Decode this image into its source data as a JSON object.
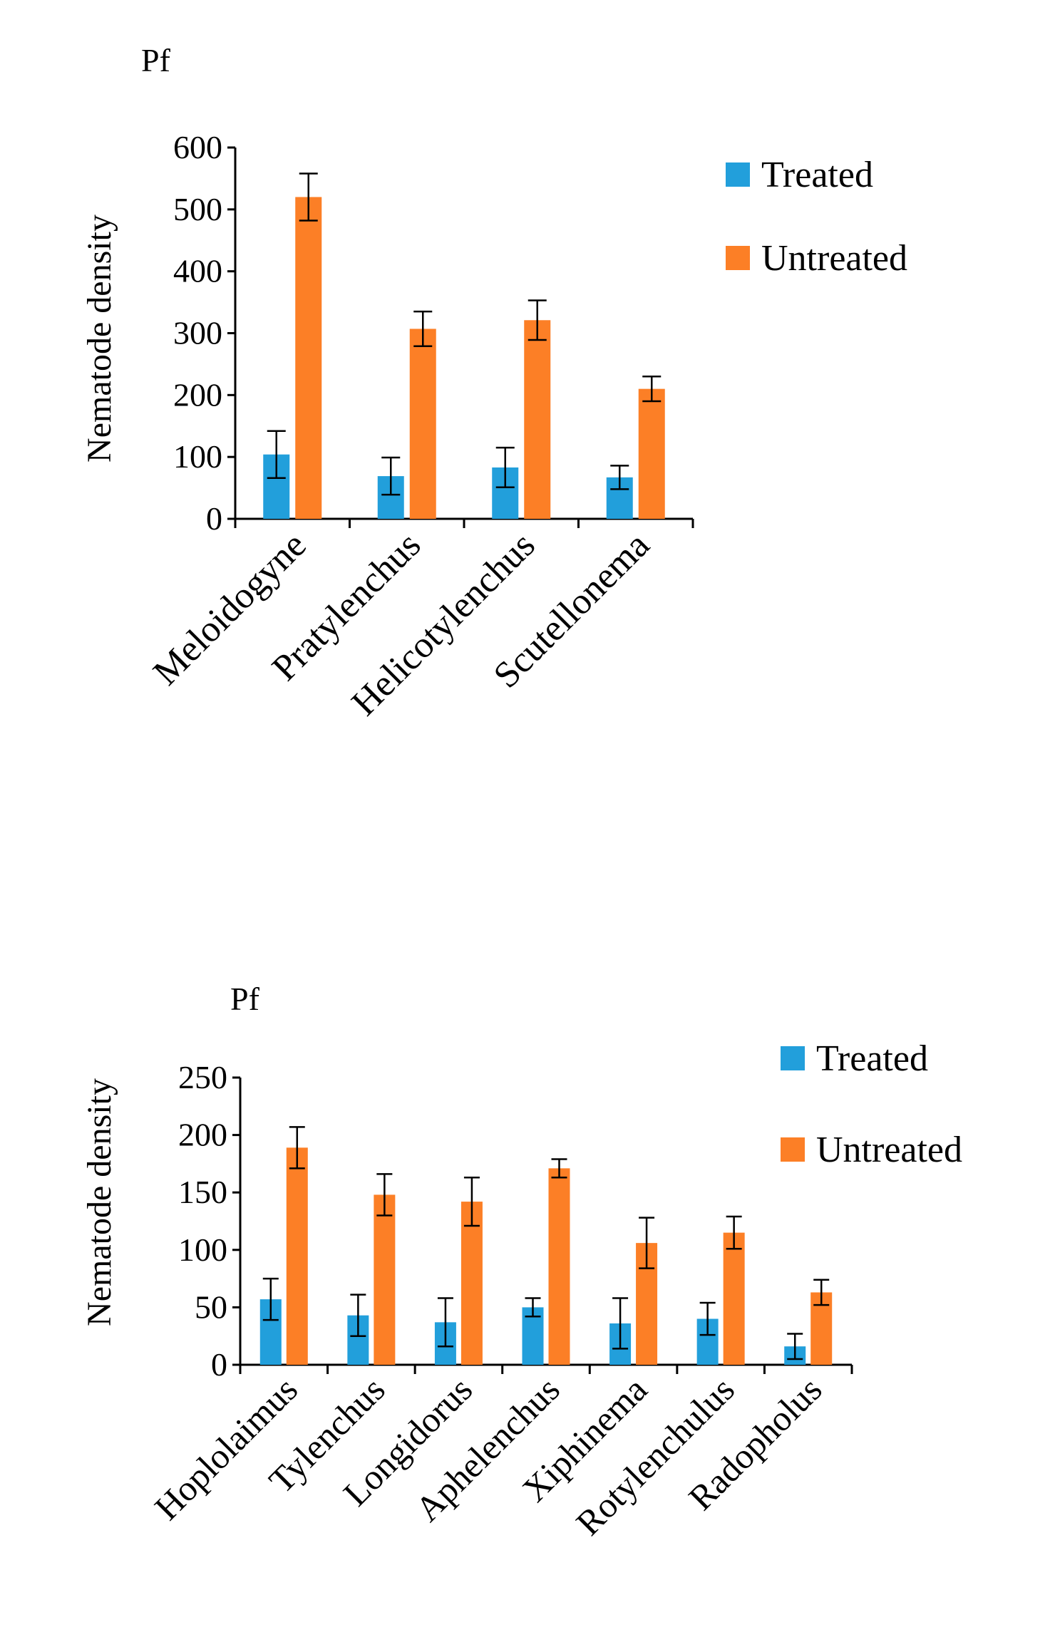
{
  "colors": {
    "treated": "#229FDB",
    "untreated": "#FC7F26"
  },
  "chart_data": [
    {
      "type": "bar",
      "panel_label": "Pf",
      "ylabel": "Nematode density",
      "ylim": [
        0,
        600
      ],
      "yticks": [
        0,
        100,
        200,
        300,
        400,
        500,
        600
      ],
      "categories": [
        "Meloidogyne",
        "Pratylenchus",
        "Helicotylenchus",
        "Scutellonema"
      ],
      "series": [
        {
          "name": "Treated",
          "values": [
            104,
            69,
            83,
            67
          ],
          "errors": [
            38,
            30,
            32,
            19
          ]
        },
        {
          "name": "Untreated",
          "values": [
            520,
            307,
            321,
            210
          ],
          "errors": [
            38,
            28,
            32,
            20
          ]
        }
      ],
      "legend_position": "top-right"
    },
    {
      "type": "bar",
      "panel_label": "Pf",
      "ylabel": "Nematode density",
      "ylim": [
        0,
        250
      ],
      "yticks": [
        0,
        50,
        100,
        150,
        200,
        250
      ],
      "categories": [
        "Hoplolaimus",
        "Tylenchus",
        "Longidorus",
        "Aphelenchus",
        "Xiphinema",
        "Rotylenchulus",
        "Radopholus"
      ],
      "series": [
        {
          "name": "Treated",
          "values": [
            57,
            43,
            37,
            50,
            36,
            40,
            16
          ],
          "errors": [
            18,
            18,
            21,
            8,
            22,
            14,
            11
          ]
        },
        {
          "name": "Untreated",
          "values": [
            189,
            148,
            142,
            171,
            106,
            115,
            63
          ],
          "errors": [
            18,
            18,
            21,
            8,
            22,
            14,
            11
          ]
        }
      ],
      "legend_position": "top-right"
    }
  ]
}
